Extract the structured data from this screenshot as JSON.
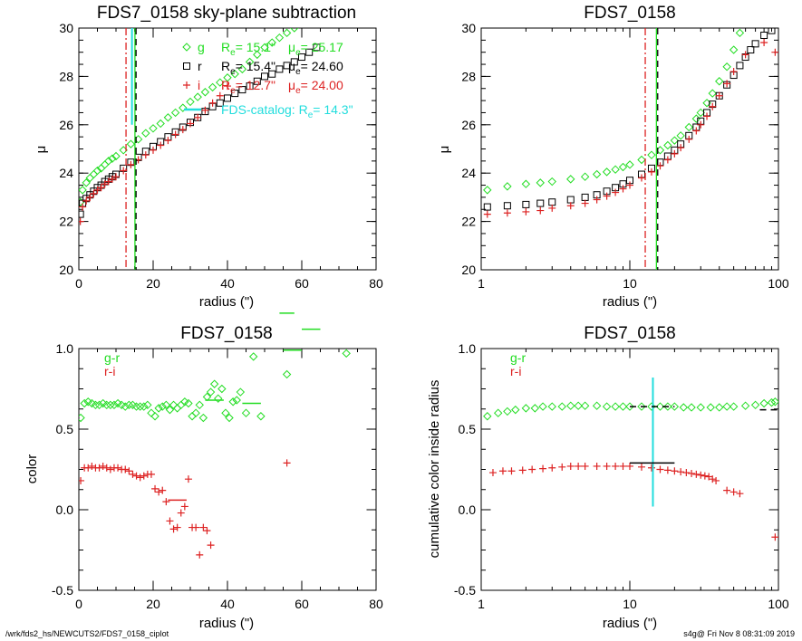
{
  "footer": {
    "left": "/wrk/fds2_hs/NEWCUTS2/FDS7_0158_ciplot",
    "right": "s4g@  Fri Nov  8 08:31:09 2019"
  },
  "colors": {
    "g": "#22dd22",
    "r": "#000000",
    "i": "#dd2222",
    "catalog": "#22dddd",
    "gr": "#22dd22",
    "ri": "#dd2222"
  },
  "chart_data": [
    {
      "id": "p1",
      "type": "scatter",
      "title": "FDS7_0158 sky-plane subtraction",
      "xlabel": "radius (\")",
      "ylabel": "μ",
      "xlim": [
        0,
        80
      ],
      "ylim": [
        30,
        20
      ],
      "xscale": "linear",
      "xticks": [
        0,
        20,
        40,
        60,
        80
      ],
      "yticks": [
        20,
        22,
        24,
        26,
        28,
        30
      ],
      "legend": [
        {
          "symbol": "◇",
          "band": "g",
          "re": "R",
          "re_sub": "e",
          "re_val": "= 15.1\"",
          "mu": "μ",
          "mu_sub": "e",
          "mu_val": "= 25.17",
          "color": "#22dd22"
        },
        {
          "symbol": "□",
          "band": "r",
          "re": "R",
          "re_sub": "e",
          "re_val": "= 15.4\"",
          "mu": "μ",
          "mu_sub": "e",
          "mu_val": "= 24.60",
          "color": "#000000"
        },
        {
          "symbol": "+",
          "band": "i",
          "re": "R",
          "re_sub": "e",
          "re_val": "= 12.7\"",
          "mu": "μ",
          "mu_sub": "e",
          "mu_val": "= 24.00",
          "color": "#dd2222"
        }
      ],
      "catalog_label": "FDS-catalog: R",
      "catalog_sub": "e",
      "catalog_val": "= 14.3\"",
      "vlines": [
        {
          "x": 12.7,
          "style": "dashdot",
          "color": "#dd2222"
        },
        {
          "x": 15.1,
          "style": "solid",
          "color": "#22dd22"
        },
        {
          "x": 15.4,
          "style": "dashed",
          "color": "#000000"
        },
        {
          "x": 14.3,
          "style": "solid",
          "color": "#22dddd",
          "ymin": 26.0,
          "ymax": 30.0
        }
      ],
      "series": [
        {
          "name": "g",
          "marker": "diamond",
          "color": "#22dd22",
          "x": [
            0.4,
            1,
            2,
            3,
            4,
            5,
            6,
            7,
            8,
            9,
            10,
            12,
            14,
            16,
            18,
            20,
            22,
            24,
            26,
            28,
            30,
            32,
            34,
            36,
            38,
            40,
            42,
            44,
            46,
            48,
            50,
            52,
            54,
            56,
            58
          ],
          "y": [
            22.8,
            23.3,
            23.6,
            23.8,
            23.95,
            24.1,
            24.2,
            24.35,
            24.5,
            24.6,
            24.7,
            24.95,
            25.2,
            25.4,
            25.65,
            25.85,
            26.05,
            26.3,
            26.5,
            26.7,
            26.95,
            27.15,
            27.35,
            27.55,
            27.75,
            27.95,
            28.1,
            28.3,
            28.6,
            28.9,
            29.2,
            29.4,
            29.6,
            29.8,
            30.0
          ]
        },
        {
          "name": "r",
          "marker": "square",
          "color": "#000000",
          "x": [
            0.4,
            1,
            2,
            3,
            4,
            5,
            6,
            7,
            8,
            9,
            10,
            12,
            14,
            16,
            18,
            20,
            22,
            24,
            26,
            28,
            30,
            32,
            34,
            36,
            38,
            40,
            42,
            44,
            46,
            48,
            50,
            52,
            54,
            56,
            58,
            60,
            62,
            64
          ],
          "y": [
            22.3,
            22.75,
            22.95,
            23.1,
            23.25,
            23.4,
            23.5,
            23.65,
            23.75,
            23.85,
            23.95,
            24.2,
            24.45,
            24.65,
            24.9,
            25.1,
            25.3,
            25.5,
            25.7,
            25.9,
            26.1,
            26.3,
            26.55,
            26.75,
            26.9,
            27.1,
            27.3,
            27.45,
            27.6,
            27.8,
            28.0,
            28.1,
            28.3,
            28.45,
            28.6,
            28.8,
            29.0,
            29.2
          ]
        },
        {
          "name": "i",
          "marker": "plus",
          "color": "#dd2222",
          "x": [
            0.4,
            1,
            2,
            3,
            4,
            5,
            6,
            7,
            8,
            9,
            10,
            12,
            14,
            16,
            18,
            20,
            22,
            24,
            26,
            28,
            30,
            32,
            34,
            36,
            38,
            40
          ],
          "y": [
            22.0,
            22.6,
            22.85,
            23.0,
            23.15,
            23.3,
            23.4,
            23.55,
            23.65,
            23.75,
            23.85,
            24.1,
            24.35,
            24.55,
            24.75,
            24.95,
            25.15,
            25.35,
            25.6,
            25.8,
            26.05,
            26.3,
            26.6,
            26.9,
            27.2,
            27.6
          ]
        }
      ]
    },
    {
      "id": "p2",
      "type": "scatter",
      "title": "FDS7_0158",
      "xlabel": "radius (\")",
      "ylabel": "μ",
      "xlim": [
        1,
        100
      ],
      "ylim": [
        30,
        20
      ],
      "xscale": "log",
      "xticks": [
        1,
        10,
        100
      ],
      "yticks": [
        20,
        22,
        24,
        26,
        28,
        30
      ],
      "vlines": [
        {
          "x": 12.7,
          "style": "dashdot",
          "color": "#dd2222"
        },
        {
          "x": 15.1,
          "style": "solid",
          "color": "#22dd22"
        },
        {
          "x": 15.4,
          "style": "dashed",
          "color": "#000000"
        }
      ],
      "series": [
        {
          "name": "g",
          "marker": "diamond",
          "color": "#22dd22",
          "x": [
            1.1,
            1.5,
            2,
            2.5,
            3,
            4,
            5,
            6,
            7,
            8,
            9,
            10,
            12,
            14,
            16,
            18,
            20,
            22,
            25,
            28,
            30,
            33,
            36,
            40,
            45,
            50,
            55
          ],
          "y": [
            23.3,
            23.45,
            23.55,
            23.6,
            23.65,
            23.75,
            23.85,
            23.95,
            24.05,
            24.15,
            24.25,
            24.35,
            24.55,
            24.75,
            24.95,
            25.15,
            25.35,
            25.55,
            25.9,
            26.25,
            26.5,
            26.9,
            27.3,
            27.8,
            28.4,
            29.1,
            29.8
          ]
        },
        {
          "name": "r",
          "marker": "square",
          "color": "#000000",
          "x": [
            1.1,
            1.5,
            2,
            2.5,
            3,
            4,
            5,
            6,
            7,
            8,
            9,
            10,
            12,
            14,
            16,
            18,
            20,
            22,
            25,
            28,
            30,
            33,
            36,
            40,
            45,
            50,
            55,
            60,
            65,
            70,
            80,
            90
          ],
          "y": [
            22.6,
            22.65,
            22.7,
            22.75,
            22.8,
            22.9,
            23.0,
            23.1,
            23.25,
            23.4,
            23.55,
            23.7,
            23.95,
            24.2,
            24.45,
            24.7,
            24.95,
            25.2,
            25.55,
            25.9,
            26.15,
            26.5,
            26.85,
            27.2,
            27.65,
            28.05,
            28.45,
            28.8,
            29.1,
            29.35,
            29.7,
            29.9
          ]
        },
        {
          "name": "i",
          "marker": "plus",
          "color": "#dd2222",
          "x": [
            1.1,
            1.5,
            2,
            2.5,
            3,
            4,
            5,
            6,
            7,
            8,
            9,
            10,
            12,
            14,
            16,
            18,
            20,
            22,
            25,
            28,
            30,
            33,
            36,
            40,
            45,
            50,
            60,
            80,
            95
          ],
          "y": [
            22.3,
            22.35,
            22.4,
            22.45,
            22.55,
            22.65,
            22.75,
            22.9,
            23.05,
            23.2,
            23.35,
            23.5,
            23.8,
            24.05,
            24.3,
            24.55,
            24.8,
            25.05,
            25.4,
            25.75,
            26.0,
            26.35,
            26.75,
            27.2,
            27.7,
            28.2,
            28.9,
            29.4,
            29.0
          ]
        }
      ]
    },
    {
      "id": "p3",
      "type": "scatter",
      "title": "FDS7_0158",
      "xlabel": "radius (\")",
      "ylabel": "color",
      "xlim": [
        0,
        80
      ],
      "ylim": [
        -0.5,
        1.0
      ],
      "xscale": "linear",
      "xticks": [
        0,
        20,
        40,
        60,
        80
      ],
      "yticks": [
        -0.5,
        0.0,
        0.5,
        1.0
      ],
      "yticklabels": [
        "-0.5",
        "0.0",
        "0.5",
        "1.0"
      ],
      "legend": [
        {
          "label": "g-r",
          "color": "#22dd22"
        },
        {
          "label": "r-i",
          "color": "#dd2222"
        }
      ],
      "hsegments": [
        {
          "x0": 34,
          "x1": 39,
          "y": 0.68,
          "color": "#22dd22"
        },
        {
          "x0": 44,
          "x1": 49,
          "y": 0.66,
          "color": "#22dd22"
        },
        {
          "x0": 55,
          "x1": 60,
          "y": 0.99,
          "color": "#22dd22"
        },
        {
          "x0": 60,
          "x1": 65,
          "y": 1.12,
          "color": "#22dd22"
        },
        {
          "x0": 54,
          "x1": 58,
          "y": 1.22,
          "color": "#22dd22"
        },
        {
          "x0": 24,
          "x1": 29,
          "y": 0.06,
          "color": "#dd2222"
        }
      ],
      "series": [
        {
          "name": "g-r",
          "marker": "diamond",
          "color": "#22dd22",
          "x": [
            0.5,
            1.5,
            2.5,
            3.5,
            4.5,
            5.5,
            6.5,
            7.5,
            8.5,
            9.5,
            10.5,
            11.5,
            12.5,
            13.5,
            14.5,
            15.5,
            16.5,
            17.5,
            18.5,
            19.5,
            20.5,
            21.5,
            22.5,
            23.5,
            24.5,
            25.5,
            26.5,
            27.5,
            28.5,
            29.5,
            30.5,
            31.5,
            32.5,
            33.5,
            34.5,
            35.5,
            36.5,
            37.5,
            38.5,
            39.5,
            40.5,
            41.5,
            42.5,
            43.5,
            45,
            47,
            49,
            56,
            72
          ],
          "y": [
            0.57,
            0.66,
            0.67,
            0.66,
            0.65,
            0.65,
            0.66,
            0.65,
            0.65,
            0.65,
            0.66,
            0.65,
            0.64,
            0.65,
            0.65,
            0.64,
            0.64,
            0.64,
            0.65,
            0.6,
            0.58,
            0.63,
            0.64,
            0.65,
            0.62,
            0.65,
            0.63,
            0.65,
            0.67,
            0.66,
            0.58,
            0.6,
            0.65,
            0.57,
            0.7,
            0.73,
            0.78,
            0.69,
            0.75,
            0.6,
            0.57,
            0.67,
            0.68,
            0.73,
            0.6,
            0.95,
            0.58,
            0.84,
            0.97
          ]
        },
        {
          "name": "r-i",
          "marker": "plus",
          "color": "#dd2222",
          "x": [
            0.5,
            1.5,
            2.5,
            3.5,
            4.5,
            5.5,
            6.5,
            7.5,
            8.5,
            9.5,
            10.5,
            11.5,
            12.5,
            13.5,
            14.5,
            15.5,
            16.5,
            17.5,
            18.5,
            19.5,
            20.5,
            21.5,
            22.5,
            23.5,
            24.5,
            25.5,
            26.5,
            27.5,
            28.5,
            29.5,
            30.5,
            31.5,
            32.5,
            33.5,
            34.5,
            35.5,
            56
          ],
          "y": [
            0.18,
            0.26,
            0.26,
            0.27,
            0.26,
            0.26,
            0.27,
            0.26,
            0.25,
            0.26,
            0.26,
            0.25,
            0.25,
            0.24,
            0.22,
            0.21,
            0.2,
            0.21,
            0.22,
            0.22,
            0.13,
            0.11,
            0.12,
            0.05,
            -0.07,
            -0.12,
            -0.11,
            -0.02,
            0.02,
            0.19,
            -0.11,
            -0.11,
            -0.28,
            -0.11,
            -0.13,
            -0.22,
            0.29
          ]
        }
      ]
    },
    {
      "id": "p4",
      "type": "scatter",
      "title": "FDS7_0158",
      "xlabel": "radius (\")",
      "ylabel": "cumulative color inside radius",
      "xlim": [
        1,
        100
      ],
      "ylim": [
        -0.5,
        1.0
      ],
      "xscale": "log",
      "xticks": [
        1,
        10,
        100
      ],
      "yticks": [
        -0.5,
        0.0,
        0.5,
        1.0
      ],
      "yticklabels": [
        "-0.5",
        "0.0",
        "0.5",
        "1.0"
      ],
      "legend": [
        {
          "label": "g-r",
          "color": "#22dd22"
        },
        {
          "label": "r-i",
          "color": "#dd2222"
        }
      ],
      "vlines": [
        {
          "x": 14.3,
          "style": "solid",
          "color": "#22dddd",
          "ymin": 0.02,
          "ymax": 0.82
        }
      ],
      "hsegments": [
        {
          "x0": 10,
          "x1": 20,
          "y": 0.64,
          "color": "#000000",
          "style": "dashed"
        },
        {
          "x0": 10,
          "x1": 20,
          "y": 0.29,
          "color": "#000000",
          "style": "solid"
        },
        {
          "x0": 75,
          "x1": 100,
          "y": 0.62,
          "color": "#000000",
          "style": "dashed"
        }
      ],
      "series": [
        {
          "name": "g-r",
          "marker": "diamond",
          "color": "#22dd22",
          "x": [
            1.1,
            1.3,
            1.5,
            1.7,
            2,
            2.3,
            2.6,
            3,
            3.5,
            4,
            4.5,
            5,
            6,
            7,
            8,
            9,
            10,
            12,
            14,
            16,
            18,
            20,
            23,
            26,
            30,
            35,
            40,
            45,
            50,
            60,
            70,
            80,
            90,
            95
          ],
          "y": [
            0.58,
            0.6,
            0.61,
            0.62,
            0.63,
            0.63,
            0.64,
            0.64,
            0.64,
            0.645,
            0.645,
            0.645,
            0.645,
            0.64,
            0.64,
            0.64,
            0.64,
            0.64,
            0.64,
            0.64,
            0.64,
            0.64,
            0.635,
            0.635,
            0.635,
            0.635,
            0.635,
            0.64,
            0.64,
            0.645,
            0.65,
            0.66,
            0.665,
            0.67
          ]
        },
        {
          "name": "r-i",
          "marker": "plus",
          "color": "#dd2222",
          "x": [
            1.2,
            1.4,
            1.6,
            1.9,
            2.2,
            2.6,
            3,
            3.5,
            4,
            4.5,
            5,
            6,
            7,
            8,
            9,
            10,
            12,
            14,
            16,
            18,
            20,
            22,
            24,
            26,
            28,
            30,
            32,
            34,
            36,
            38,
            45,
            50,
            55,
            95
          ],
          "y": [
            0.23,
            0.24,
            0.24,
            0.245,
            0.25,
            0.255,
            0.26,
            0.265,
            0.27,
            0.27,
            0.27,
            0.27,
            0.27,
            0.27,
            0.27,
            0.27,
            0.265,
            0.26,
            0.25,
            0.245,
            0.24,
            0.235,
            0.23,
            0.225,
            0.22,
            0.215,
            0.21,
            0.205,
            0.19,
            0.18,
            0.12,
            0.11,
            0.1,
            -0.17
          ]
        }
      ]
    }
  ]
}
